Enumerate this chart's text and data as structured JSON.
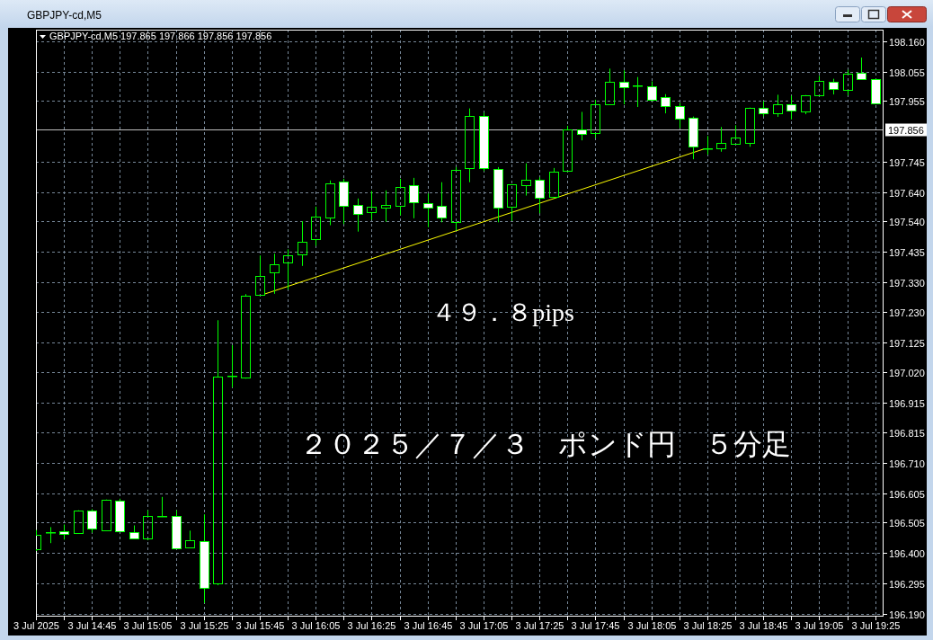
{
  "chart_data": {
    "type": "candlestick",
    "title": "GBPJPY-cd,M5",
    "subtitle": "GBPJPY-cd,M5 197.865 197.866 197.856 197.856",
    "x": [
      "2025-07-03T14:25",
      "2025-07-03T14:30",
      "2025-07-03T14:35",
      "2025-07-03T14:40",
      "2025-07-03T14:45",
      "2025-07-03T14:50",
      "2025-07-03T14:55",
      "2025-07-03T15:00",
      "2025-07-03T15:05",
      "2025-07-03T15:10",
      "2025-07-03T15:15",
      "2025-07-03T15:20",
      "2025-07-03T15:25",
      "2025-07-03T15:30",
      "2025-07-03T15:35",
      "2025-07-03T15:40",
      "2025-07-03T15:45",
      "2025-07-03T15:50",
      "2025-07-03T15:55",
      "2025-07-03T16:00",
      "2025-07-03T16:05",
      "2025-07-03T16:10",
      "2025-07-03T16:15",
      "2025-07-03T16:20",
      "2025-07-03T16:25",
      "2025-07-03T16:30",
      "2025-07-03T16:35",
      "2025-07-03T16:40",
      "2025-07-03T16:45",
      "2025-07-03T16:50",
      "2025-07-03T16:55",
      "2025-07-03T17:00",
      "2025-07-03T17:05",
      "2025-07-03T17:10",
      "2025-07-03T17:15",
      "2025-07-03T17:20",
      "2025-07-03T17:25",
      "2025-07-03T17:30",
      "2025-07-03T17:35",
      "2025-07-03T17:40",
      "2025-07-03T17:45",
      "2025-07-03T17:50",
      "2025-07-03T17:55",
      "2025-07-03T18:00",
      "2025-07-03T18:05",
      "2025-07-03T18:10",
      "2025-07-03T18:15",
      "2025-07-03T18:20",
      "2025-07-03T18:25",
      "2025-07-03T18:30",
      "2025-07-03T18:35",
      "2025-07-03T18:40",
      "2025-07-03T18:45",
      "2025-07-03T18:50",
      "2025-07-03T18:55",
      "2025-07-03T19:00",
      "2025-07-03T19:05",
      "2025-07-03T19:10",
      "2025-07-03T19:15",
      "2025-07-03T19:20",
      "2025-07-03T19:25"
    ],
    "ohlc": [
      [
        196.413,
        196.478,
        196.406,
        196.462
      ],
      [
        196.472,
        196.488,
        196.433,
        196.472
      ],
      [
        196.475,
        196.497,
        196.445,
        196.466
      ],
      [
        196.468,
        196.546,
        196.468,
        196.546
      ],
      [
        196.546,
        196.55,
        196.469,
        196.484
      ],
      [
        196.478,
        196.583,
        196.478,
        196.583
      ],
      [
        196.58,
        196.586,
        196.475,
        196.475
      ],
      [
        196.471,
        196.494,
        196.447,
        196.45
      ],
      [
        196.45,
        196.546,
        196.443,
        196.527
      ],
      [
        196.527,
        196.592,
        196.523,
        196.527
      ],
      [
        196.527,
        196.546,
        196.416,
        196.416
      ],
      [
        196.419,
        196.476,
        196.419,
        196.444
      ],
      [
        196.441,
        196.532,
        196.227,
        196.28
      ],
      [
        196.295,
        197.2,
        196.288,
        197.007
      ],
      [
        197.009,
        197.114,
        196.969,
        197.009
      ],
      [
        197.004,
        197.29,
        196.999,
        197.283
      ],
      [
        197.286,
        197.423,
        197.286,
        197.351
      ],
      [
        197.365,
        197.429,
        197.291,
        197.394
      ],
      [
        197.399,
        197.444,
        197.306,
        197.425
      ],
      [
        197.428,
        197.541,
        197.387,
        197.469
      ],
      [
        197.478,
        197.591,
        197.456,
        197.556
      ],
      [
        197.553,
        197.681,
        197.527,
        197.671
      ],
      [
        197.677,
        197.687,
        197.531,
        197.593
      ],
      [
        197.596,
        197.619,
        197.505,
        197.565
      ],
      [
        197.573,
        197.645,
        197.546,
        197.59
      ],
      [
        197.587,
        197.647,
        197.539,
        197.597
      ],
      [
        197.593,
        197.687,
        197.561,
        197.658
      ],
      [
        197.664,
        197.69,
        197.551,
        197.605
      ],
      [
        197.602,
        197.636,
        197.52,
        197.587
      ],
      [
        197.593,
        197.675,
        197.537,
        197.553
      ],
      [
        197.537,
        197.727,
        197.508,
        197.717
      ],
      [
        197.723,
        197.929,
        197.675,
        197.903
      ],
      [
        197.903,
        197.914,
        197.713,
        197.723
      ],
      [
        197.72,
        197.727,
        197.537,
        197.587
      ],
      [
        197.59,
        197.667,
        197.542,
        197.667
      ],
      [
        197.664,
        197.74,
        197.629,
        197.683
      ],
      [
        197.683,
        197.692,
        197.568,
        197.621
      ],
      [
        197.624,
        197.724,
        197.624,
        197.711
      ],
      [
        197.714,
        197.869,
        197.71,
        197.857
      ],
      [
        197.857,
        197.917,
        197.819,
        197.842
      ],
      [
        197.845,
        197.959,
        197.828,
        197.944
      ],
      [
        197.944,
        198.066,
        197.944,
        198.022
      ],
      [
        198.022,
        198.06,
        197.943,
        198.003
      ],
      [
        198.007,
        198.037,
        197.934,
        198.007
      ],
      [
        198.006,
        198.022,
        197.954,
        197.959
      ],
      [
        197.969,
        197.978,
        197.912,
        197.938
      ],
      [
        197.938,
        197.948,
        197.861,
        197.895
      ],
      [
        197.898,
        197.901,
        197.754,
        197.798
      ],
      [
        197.793,
        197.834,
        197.77,
        197.793
      ],
      [
        197.792,
        197.865,
        197.78,
        197.809
      ],
      [
        197.807,
        197.871,
        197.807,
        197.829
      ],
      [
        197.811,
        197.932,
        197.797,
        197.932
      ],
      [
        197.932,
        197.954,
        197.902,
        197.913
      ],
      [
        197.913,
        197.976,
        197.9,
        197.944
      ],
      [
        197.944,
        197.973,
        197.891,
        197.923
      ],
      [
        197.92,
        197.975,
        197.909,
        197.975
      ],
      [
        197.975,
        198.041,
        197.975,
        198.025
      ],
      [
        198.022,
        198.031,
        197.977,
        197.997
      ],
      [
        197.994,
        198.062,
        197.974,
        198.047
      ],
      [
        198.05,
        198.104,
        198.031,
        198.031
      ],
      [
        198.031,
        198.031,
        197.947,
        197.947
      ]
    ],
    "color": "#00ff00",
    "colors": [
      "#00ff00",
      "#00ff00",
      "#ffffff",
      "#00ff00",
      "#ffffff",
      "#00ff00",
      "#ffffff",
      "#ffffff",
      "#00ff00",
      "#00ff00",
      "#ffffff",
      "#00ff00",
      "#ffffff",
      "#00ff00",
      "#00ff00",
      "#00ff00",
      "#00ff00",
      "#00ff00",
      "#00ff00",
      "#00ff00",
      "#00ff00",
      "#00ff00",
      "#ffffff",
      "#ffffff",
      "#00ff00",
      "#00ff00",
      "#00ff00",
      "#ffffff",
      "#ffffff",
      "#ffffff",
      "#00ff00",
      "#00ff00",
      "#ffffff",
      "#ffffff",
      "#00ff00",
      "#00ff00",
      "#ffffff",
      "#00ff00",
      "#00ff00",
      "#ffffff",
      "#00ff00",
      "#00ff00",
      "#ffffff",
      "#00ff00",
      "#ffffff",
      "#ffffff",
      "#ffffff",
      "#ffffff",
      "#00ff00",
      "#00ff00",
      "#00ff00",
      "#00ff00",
      "#ffffff",
      "#00ff00",
      "#ffffff",
      "#00ff00",
      "#00ff00",
      "#ffffff",
      "#00ff00",
      "#ffffff",
      "#ffffff"
    ],
    "series": [
      {
        "type": "line",
        "x": [
          "2025-07-03T15:47",
          "2025-07-03T18:24"
        ],
        "values": [
          197.291,
          197.79
        ],
        "color": "#ffff00"
      }
    ],
    "xlim": [
      "2025-07-03T14:25",
      "2025-07-03T19:28"
    ],
    "xticks": [
      {
        "value": "2025-07-03T14:25",
        "label": "3 Jul 2025"
      },
      {
        "value": "2025-07-03T14:35",
        "label": null
      },
      {
        "value": "2025-07-03T14:45",
        "label": "3 Jul 14:45"
      },
      {
        "value": "2025-07-03T14:55",
        "label": null
      },
      {
        "value": "2025-07-03T15:05",
        "label": "3 Jul 15:05"
      },
      {
        "value": "2025-07-03T15:15",
        "label": null
      },
      {
        "value": "2025-07-03T15:25",
        "label": "3 Jul 15:25"
      },
      {
        "value": "2025-07-03T15:35",
        "label": null
      },
      {
        "value": "2025-07-03T15:45",
        "label": "3 Jul 15:45"
      },
      {
        "value": "2025-07-03T15:55",
        "label": null
      },
      {
        "value": "2025-07-03T16:05",
        "label": "3 Jul 16:05"
      },
      {
        "value": "2025-07-03T16:15",
        "label": null
      },
      {
        "value": "2025-07-03T16:25",
        "label": "3 Jul 16:25"
      },
      {
        "value": "2025-07-03T16:35",
        "label": null
      },
      {
        "value": "2025-07-03T16:45",
        "label": "3 Jul 16:45"
      },
      {
        "value": "2025-07-03T16:55",
        "label": null
      },
      {
        "value": "2025-07-03T17:05",
        "label": "3 Jul 17:05"
      },
      {
        "value": "2025-07-03T17:15",
        "label": null
      },
      {
        "value": "2025-07-03T17:25",
        "label": "3 Jul 17:25"
      },
      {
        "value": "2025-07-03T17:35",
        "label": null
      },
      {
        "value": "2025-07-03T17:45",
        "label": "3 Jul 17:45"
      },
      {
        "value": "2025-07-03T17:55",
        "label": null
      },
      {
        "value": "2025-07-03T18:05",
        "label": "3 Jul 18:05"
      },
      {
        "value": "2025-07-03T18:15",
        "label": null
      },
      {
        "value": "2025-07-03T18:25",
        "label": "3 Jul 18:25"
      },
      {
        "value": "2025-07-03T18:35",
        "label": null
      },
      {
        "value": "2025-07-03T18:45",
        "label": "3 Jul 18:45"
      },
      {
        "value": "2025-07-03T18:55",
        "label": null
      },
      {
        "value": "2025-07-03T19:05",
        "label": "3 Jul 19:05"
      },
      {
        "value": "2025-07-03T19:15",
        "label": null
      },
      {
        "value": "2025-07-03T19:25",
        "label": "3 Jul 19:25"
      }
    ],
    "ylim": [
      196.18,
      198.2
    ],
    "yticks": [
      {
        "value": 198.16,
        "label": "198.160"
      },
      198.055,
      197.955,
      197.745,
      {
        "value": 197.64,
        "label": "197.640"
      },
      {
        "value": 197.54,
        "label": "197.540"
      },
      197.435,
      {
        "value": 197.33,
        "label": "197.330"
      },
      {
        "value": 197.23,
        "label": "197.230"
      },
      197.125,
      {
        "value": 197.02,
        "label": "197.020"
      },
      196.915,
      196.815,
      {
        "value": 196.71,
        "label": "196.710"
      },
      196.605,
      196.505,
      {
        "value": 196.4,
        "label": "196.400"
      },
      196.295,
      {
        "value": 196.19,
        "label": "196.190"
      }
    ],
    "ref_lines": [
      {
        "axis": "y",
        "value": 197.856,
        "label": "197.856",
        "color": "#c0c0c0"
      }
    ],
    "grid": true,
    "annotations": [
      "４９．８pips",
      "２０２５／７／３　ポンド円　５分足"
    ]
  }
}
